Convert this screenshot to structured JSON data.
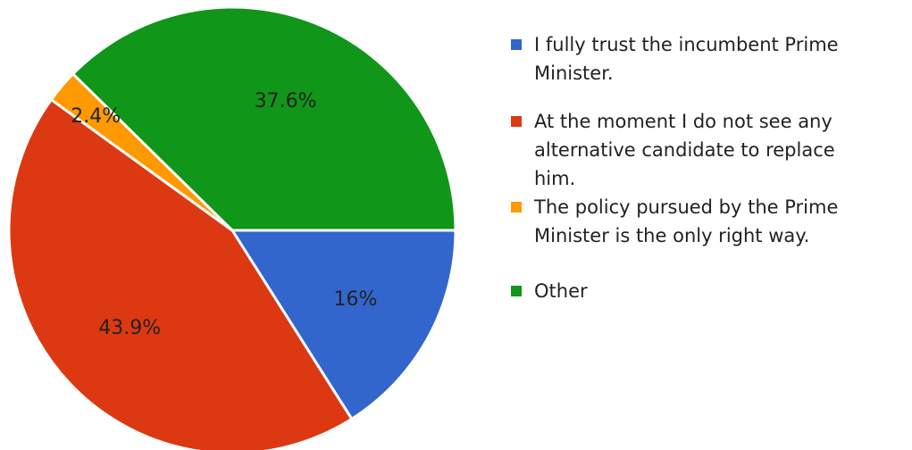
{
  "chart_data": {
    "type": "pie",
    "categories": [
      "I fully trust the incumbent Prime Minister.",
      "At the moment I do not see any alternative candidate to replace him.",
      "The policy pursued by the Prime Minister is the only right way.",
      "Other"
    ],
    "values": [
      16,
      43.9,
      2.4,
      37.6
    ],
    "data_labels": [
      "16%",
      "43.9%",
      "2.4%",
      "37.6%"
    ],
    "colors": [
      "#3366cc",
      "#dc3912",
      "#ff9900",
      "#109618"
    ],
    "legend_position": "right",
    "start": "3 o'clock, clockwise"
  },
  "legend": {
    "lines": [
      [
        "I fully trust the incumbent Prime",
        "Minister."
      ],
      [
        "At the moment I do not see any",
        "alternative candidate to replace",
        "him."
      ],
      [
        "The policy pursued by the Prime",
        "Minister is the only right way."
      ],
      [
        "Other"
      ]
    ]
  }
}
